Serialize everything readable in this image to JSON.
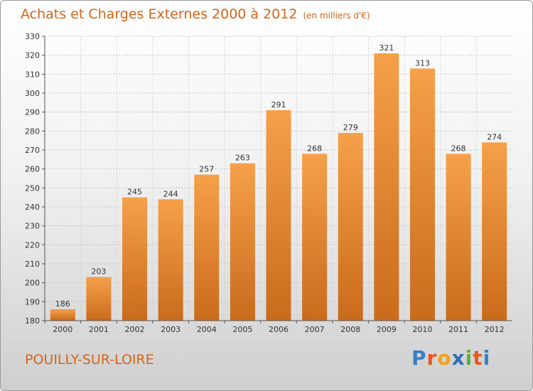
{
  "header": {
    "title": "Achats et Charges Externes 2000 à 2012",
    "unit": "(en milliers d'€)"
  },
  "commune": "POUILLY-SUR-LOIRE",
  "logo": {
    "text": "Proxiti",
    "letters": [
      "P",
      "r",
      "o",
      "x",
      "i",
      "t",
      "i"
    ],
    "colors": [
      "#3a7fc4",
      "#e8561e",
      "#f3a21a",
      "#2e6fb8",
      "#5cae3c",
      "#e8561e",
      "#3a7fc4"
    ]
  },
  "chart_data": {
    "type": "bar",
    "title": "Achats et Charges Externes 2000 à 2012",
    "subtitle": "(en milliers d'€)",
    "categories": [
      "2000",
      "2001",
      "2002",
      "2003",
      "2004",
      "2005",
      "2006",
      "2007",
      "2008",
      "2009",
      "2010",
      "2011",
      "2012"
    ],
    "values": [
      186,
      203,
      245,
      244,
      257,
      263,
      291,
      268,
      279,
      321,
      313,
      268,
      274
    ],
    "ylim": [
      180,
      330
    ],
    "yticks": [
      180,
      190,
      200,
      210,
      220,
      230,
      240,
      250,
      260,
      270,
      280,
      290,
      300,
      310,
      320,
      330
    ],
    "grid": true,
    "bar_color": "#f0953f",
    "bar_color_dark": "#c96b1c"
  }
}
